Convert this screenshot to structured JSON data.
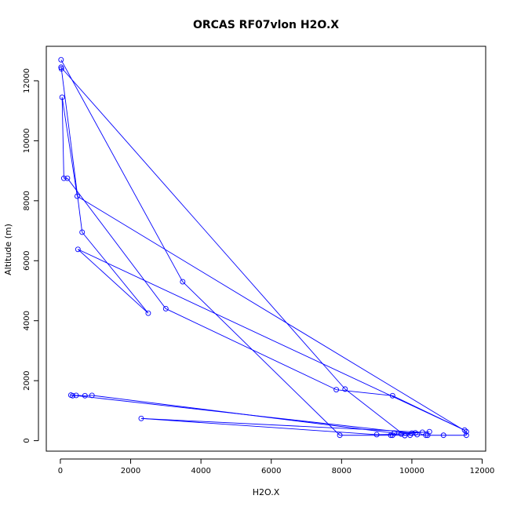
{
  "colors": {
    "series": "#0000ff",
    "axis": "#000000",
    "background": "#ffffff"
  },
  "chart_data": {
    "type": "line",
    "title": "ORCAS RF07vlon H2O.X",
    "xlabel": "H2O.X",
    "ylabel": "Altitude (m)",
    "xlim": [
      -400,
      12100
    ],
    "ylim": [
      -350,
      13150
    ],
    "x_ticks": [
      0,
      2000,
      4000,
      6000,
      8000,
      10000,
      12000
    ],
    "y_ticks": [
      0,
      2000,
      4000,
      6000,
      8000,
      10000,
      12000
    ],
    "x_tick_labels": [
      "0",
      "2000",
      "4000",
      "6000",
      "8000",
      "10000",
      "12000"
    ],
    "y_tick_labels": [
      "0",
      "2000",
      "4000",
      "6000",
      "8000",
      "10000",
      "12000"
    ],
    "grid": false,
    "legend": "none",
    "markers": "open-circle",
    "series": [
      {
        "color": "#0000ff",
        "x": [
          20,
          3480,
          7950,
          9400,
          9450,
          9950,
          10150,
          10400,
          10450,
          10900,
          11550,
          11550,
          480,
          50,
          100,
          200,
          3000,
          7850,
          9450,
          11500,
          500,
          2500,
          620,
          30,
          20,
          8100,
          9800,
          10000,
          300,
          350,
          450,
          700,
          900,
          9500,
          10300,
          2300,
          9000,
          9700,
          10100,
          10500
        ],
        "y": [
          12700,
          5300,
          180,
          180,
          180,
          180,
          200,
          180,
          180,
          180,
          180,
          300,
          8150,
          11450,
          8750,
          8750,
          4400,
          1700,
          1500,
          350,
          6380,
          4250,
          6950,
          12400,
          12450,
          1720,
          170,
          250,
          1520,
          1500,
          1510,
          1500,
          1510,
          250,
          280,
          740,
          200,
          220,
          260,
          300
        ]
      }
    ]
  }
}
